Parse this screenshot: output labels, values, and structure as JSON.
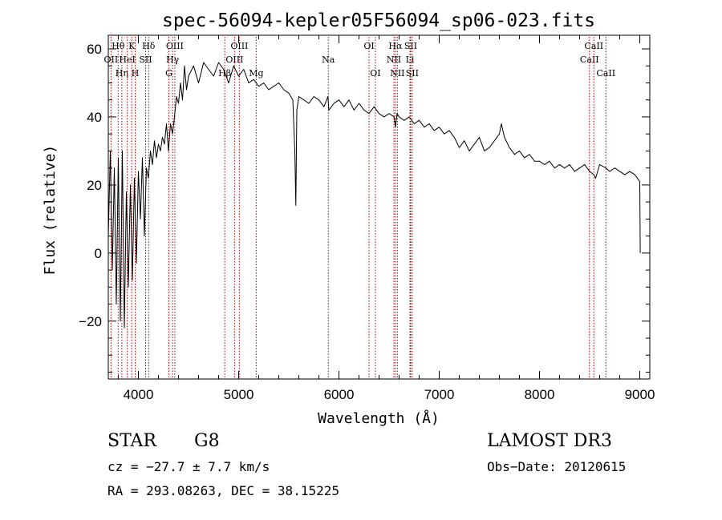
{
  "chart_data": {
    "type": "line",
    "title": "spec-56094-kepler05F56094_sp06-023.fits",
    "xlabel": "Wavelength (Å)",
    "ylabel": "Flux (relative)",
    "xlim": [
      3700,
      9100
    ],
    "ylim": [
      -37,
      64
    ],
    "x_ticks": [
      4000,
      5000,
      6000,
      7000,
      8000,
      9000
    ],
    "y_ticks": [
      -20,
      0,
      20,
      40,
      60
    ],
    "series": [
      {
        "name": "flux",
        "x": [
          3700,
          3720,
          3740,
          3760,
          3780,
          3800,
          3820,
          3840,
          3860,
          3880,
          3900,
          3920,
          3940,
          3960,
          3980,
          4000,
          4020,
          4040,
          4060,
          4080,
          4100,
          4120,
          4140,
          4160,
          4180,
          4200,
          4220,
          4240,
          4260,
          4280,
          4300,
          4320,
          4340,
          4360,
          4380,
          4400,
          4420,
          4440,
          4460,
          4480,
          4500,
          4550,
          4600,
          4650,
          4700,
          4750,
          4800,
          4850,
          4900,
          4950,
          5000,
          5050,
          5100,
          5150,
          5200,
          5250,
          5300,
          5350,
          5400,
          5450,
          5500,
          5540,
          5560,
          5570,
          5580,
          5600,
          5650,
          5700,
          5750,
          5800,
          5850,
          5890,
          5900,
          5950,
          6000,
          6050,
          6100,
          6150,
          6200,
          6250,
          6300,
          6350,
          6400,
          6450,
          6500,
          6550,
          6563,
          6580,
          6600,
          6650,
          6700,
          6750,
          6800,
          6850,
          6900,
          6950,
          7000,
          7050,
          7100,
          7150,
          7200,
          7250,
          7300,
          7350,
          7400,
          7450,
          7500,
          7550,
          7600,
          7620,
          7650,
          7700,
          7750,
          7800,
          7850,
          7900,
          7950,
          8000,
          8050,
          8100,
          8150,
          8200,
          8250,
          8300,
          8350,
          8400,
          8450,
          8500,
          8542,
          8560,
          8600,
          8662,
          8700,
          8750,
          8800,
          8850,
          8900,
          8950,
          9000,
          9005
        ],
        "values": [
          5,
          30,
          -5,
          25,
          -15,
          28,
          -20,
          30,
          -22,
          18,
          -10,
          20,
          -8,
          22,
          -3,
          24,
          10,
          28,
          5,
          25,
          22,
          30,
          26,
          33,
          28,
          32,
          30,
          34,
          32,
          38,
          30,
          38,
          35,
          40,
          46,
          44,
          50,
          45,
          55,
          48,
          52,
          55,
          50,
          56,
          54,
          52,
          56,
          54,
          50,
          55,
          52,
          54,
          50,
          51,
          49,
          50,
          48,
          49,
          50,
          48,
          47,
          45,
          30,
          14,
          42,
          46,
          45,
          44,
          46,
          45,
          43,
          46,
          42,
          44,
          45,
          43,
          45,
          42,
          44,
          42,
          41,
          43,
          41,
          40,
          41,
          40,
          37,
          41,
          40,
          39,
          40,
          38,
          39,
          37,
          38,
          36,
          37,
          35,
          36,
          34,
          31,
          33,
          30,
          32,
          34,
          30,
          31,
          33,
          35,
          38,
          34,
          31,
          29,
          30,
          28,
          29,
          27,
          27,
          26,
          27,
          25,
          26,
          25,
          26,
          24,
          25,
          26,
          24,
          23,
          22,
          26,
          25,
          24,
          25,
          24,
          23,
          24,
          23,
          21,
          0
        ]
      }
    ],
    "lines": [
      {
        "name": "OII",
        "wave": 3727,
        "row": 2
      },
      {
        "name": "Hθ",
        "wave": 3798,
        "row": 1
      },
      {
        "name": "Hη",
        "wave": 3835,
        "row": 3
      },
      {
        "name": "HeI",
        "wave": 3889,
        "row": 2
      },
      {
        "name": "K",
        "wave": 3934,
        "row": 1
      },
      {
        "name": "H",
        "wave": 3968,
        "row": 3
      },
      {
        "name": "SII",
        "wave": 4072,
        "row": 2
      },
      {
        "name": "Hδ",
        "wave": 4102,
        "row": 1
      },
      {
        "name": "G",
        "wave": 4304,
        "row": 3
      },
      {
        "name": "Hγ",
        "wave": 4341,
        "row": 2
      },
      {
        "name": "OIII",
        "wave": 4363,
        "row": 1
      },
      {
        "name": "Hβ",
        "wave": 4861,
        "row": 3
      },
      {
        "name": "OIII",
        "wave": 4959,
        "row": 2
      },
      {
        "name": "OIII",
        "wave": 5007,
        "row": 1
      },
      {
        "name": "Mg",
        "wave": 5175,
        "row": 3
      },
      {
        "name": "Na",
        "wave": 5894,
        "row": 2
      },
      {
        "name": "OI",
        "wave": 6300,
        "row": 1
      },
      {
        "name": "OI",
        "wave": 6363,
        "row": 3
      },
      {
        "name": "NII",
        "wave": 6548,
        "row": 2
      },
      {
        "name": "Hα",
        "wave": 6563,
        "row": 1
      },
      {
        "name": "NII",
        "wave": 6583,
        "row": 3
      },
      {
        "name": "Li",
        "wave": 6708,
        "row": 2
      },
      {
        "name": "SII",
        "wave": 6716,
        "row": 1
      },
      {
        "name": "SII",
        "wave": 6731,
        "row": 3
      },
      {
        "name": "CaII",
        "wave": 8498,
        "row": 2
      },
      {
        "name": "CaII",
        "wave": 8542,
        "row": 1
      },
      {
        "name": "CaII",
        "wave": 8662,
        "row": 3
      }
    ]
  },
  "info": {
    "object_class": "STAR",
    "subclass": "G8",
    "survey": "LAMOST DR3",
    "cz": "cz = −27.7 ± 7.7 km/s",
    "obs_date": "Obs−Date: 20120615",
    "coords": "RA = 293.08263, DEC =  38.15225"
  },
  "colors": {
    "axis": "#000000",
    "line_marker": "#aa0000",
    "flux": "#000000"
  }
}
